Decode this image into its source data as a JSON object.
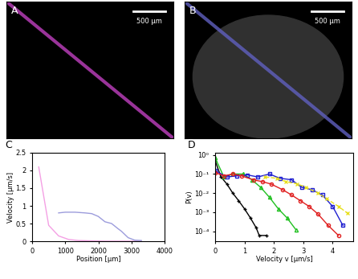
{
  "chart_data": [
    {
      "type": "image",
      "title": "A",
      "scale_bar": "500 μm",
      "line_color": "#c040c0"
    },
    {
      "type": "image",
      "title": "B",
      "scale_bar": "500 μm",
      "line_color": "#6060c0"
    },
    {
      "type": "line",
      "title": "C",
      "x_label": "Position [μm]",
      "y_label": "Velocity [μm/s]",
      "xlim": [
        0,
        4000
      ],
      "xticks": [
        0,
        1000,
        2000,
        3000,
        4000
      ],
      "ylim": [
        0,
        2.5
      ],
      "yticks": [
        0,
        0.5,
        1,
        1.5,
        2,
        2.5
      ],
      "series": [
        {
          "color": "#f4a0e4",
          "x": [
            200,
            500,
            800,
            1100,
            1400,
            1800,
            2200,
            2600,
            3000,
            3300
          ],
          "values": [
            2.1,
            0.45,
            0.15,
            0.05,
            0.02,
            0.01,
            0.0,
            0.0,
            0.0,
            0.0
          ]
        },
        {
          "color": "#9c9cdc",
          "x": [
            800,
            1000,
            1300,
            1600,
            1800,
            2000,
            2200,
            2400,
            2600,
            2700,
            2900,
            3100,
            3300
          ],
          "values": [
            0.8,
            0.82,
            0.82,
            0.8,
            0.78,
            0.7,
            0.55,
            0.5,
            0.35,
            0.28,
            0.1,
            0.03,
            0.02
          ]
        }
      ]
    },
    {
      "type": "line",
      "title": "D",
      "log": "y",
      "x_label": "Velocity v [μm/s]",
      "y_label": "P(v)",
      "xlim": [
        0,
        4.7
      ],
      "xticks": [
        0,
        1,
        2,
        3,
        4
      ],
      "ylim": [
        3e-05,
        1.3
      ],
      "yticks": [
        {
          "value": 0.0001,
          "label": "10⁻⁴"
        },
        {
          "value": 0.001,
          "label": "10⁻³"
        },
        {
          "value": 0.01,
          "label": "10⁻²"
        },
        {
          "value": 0.1,
          "label": "10⁻¹"
        },
        {
          "value": 1,
          "label": "10⁰"
        }
      ],
      "series": [
        {
          "color": "#000000",
          "marker": "+",
          "line_style": "solid",
          "x": [
            0,
            0.2,
            0.4,
            0.6,
            0.8,
            1.0,
            1.2,
            1.4,
            1.5,
            1.75
          ],
          "values": [
            0.5,
            0.07,
            0.03,
            0.01,
            0.004,
            0.0015,
            0.0005,
            0.00015,
            6e-05,
            6e-05
          ]
        },
        {
          "color": "#20c020",
          "marker": "^",
          "line_style": "solid",
          "x": [
            0,
            0.3,
            0.6,
            0.95,
            1.25,
            1.55,
            1.85,
            2.15,
            2.45,
            2.75
          ],
          "values": [
            0.7,
            0.07,
            0.1,
            0.1,
            0.05,
            0.02,
            0.006,
            0.0015,
            0.0005,
            0.00012
          ]
        },
        {
          "color": "#2020d0",
          "marker": "s",
          "line_style": "solid",
          "x": [
            0,
            0.4,
            0.75,
            1.1,
            1.45,
            1.85,
            2.2,
            2.6,
            2.95,
            3.3,
            3.65,
            4.0,
            4.35
          ],
          "values": [
            0.15,
            0.07,
            0.08,
            0.09,
            0.07,
            0.1,
            0.06,
            0.05,
            0.02,
            0.015,
            0.008,
            0.002,
            0.0002
          ]
        },
        {
          "color": "#e02020",
          "marker": "o",
          "line_style": "solid",
          "x": [
            0,
            0.3,
            0.6,
            0.9,
            1.3,
            1.6,
            1.9,
            2.3,
            2.6,
            2.9,
            3.2,
            3.5,
            3.85,
            4.2
          ],
          "values": [
            0.12,
            0.08,
            0.1,
            0.08,
            0.05,
            0.04,
            0.03,
            0.015,
            0.008,
            0.004,
            0.002,
            0.0008,
            0.0002,
            6e-05
          ]
        },
        {
          "color": "#e8e020",
          "marker": "x",
          "line_style": "dashed",
          "x": [
            1.7,
            2.1,
            2.4,
            2.8,
            3.1,
            3.5,
            3.8,
            4.2,
            4.5
          ],
          "values": [
            0.07,
            0.06,
            0.04,
            0.03,
            0.02,
            0.01,
            0.005,
            0.002,
            0.0009
          ]
        }
      ]
    }
  ]
}
